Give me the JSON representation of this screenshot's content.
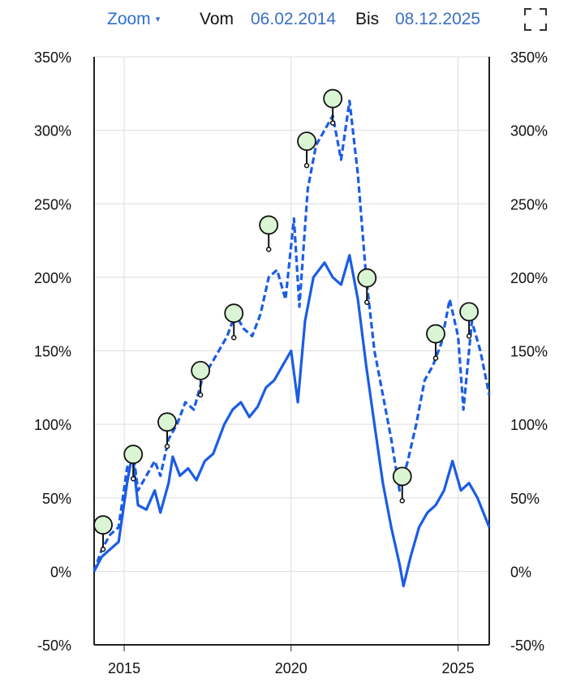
{
  "toolbar": {
    "zoom_label": "Zoom",
    "zoom_caret": "▾",
    "from_label": "Vom",
    "from_date": "06.02.2014",
    "to_label": "Bis",
    "to_date": "08.12.2025",
    "fullscreen_icon": "fullscreen-icon"
  },
  "colors": {
    "series": "#1a5ce6",
    "marker_fill": "#d9f5d3",
    "marker_stroke": "#111111",
    "grid": "#dddddd",
    "axis": "#222222",
    "accent_text": "#3a6fc4"
  },
  "chart_data": {
    "type": "line",
    "title": "",
    "xlabel": "",
    "ylabel": "",
    "x_ticks": [
      "2015",
      "2020",
      "2025"
    ],
    "y_ticks": [
      "350%",
      "300%",
      "250%",
      "200%",
      "150%",
      "100%",
      "50%",
      "0%",
      "-50%"
    ],
    "ylim": [
      -50,
      350
    ],
    "xlim": [
      "2014-02-06",
      "2025-12-08"
    ],
    "grid": true,
    "y_axis_sides": "both",
    "series": [
      {
        "style": "solid",
        "points": [
          [
            "2014-02-06",
            0
          ],
          [
            "2014-05-01",
            10
          ],
          [
            "2014-08-01",
            15
          ],
          [
            "2014-11-01",
            20
          ],
          [
            "2015-02-01",
            60
          ],
          [
            "2015-04-01",
            80
          ],
          [
            "2015-06-01",
            45
          ],
          [
            "2015-09-01",
            42
          ],
          [
            "2015-12-01",
            55
          ],
          [
            "2016-02-01",
            40
          ],
          [
            "2016-05-01",
            60
          ],
          [
            "2016-06-15",
            78
          ],
          [
            "2016-09-01",
            65
          ],
          [
            "2016-12-01",
            70
          ],
          [
            "2017-03-01",
            62
          ],
          [
            "2017-06-01",
            75
          ],
          [
            "2017-09-01",
            80
          ],
          [
            "2018-01-01",
            100
          ],
          [
            "2018-04-01",
            110
          ],
          [
            "2018-07-01",
            115
          ],
          [
            "2018-10-01",
            105
          ],
          [
            "2019-01-01",
            112
          ],
          [
            "2019-04-01",
            125
          ],
          [
            "2019-07-01",
            130
          ],
          [
            "2019-10-01",
            140
          ],
          [
            "2020-01-01",
            150
          ],
          [
            "2020-03-15",
            115
          ],
          [
            "2020-06-01",
            170
          ],
          [
            "2020-09-01",
            200
          ],
          [
            "2021-01-01",
            210
          ],
          [
            "2021-04-01",
            200
          ],
          [
            "2021-07-01",
            195
          ],
          [
            "2021-10-01",
            215
          ],
          [
            "2022-01-01",
            185
          ],
          [
            "2022-04-01",
            140
          ],
          [
            "2022-07-01",
            100
          ],
          [
            "2022-10-01",
            60
          ],
          [
            "2023-01-01",
            30
          ],
          [
            "2023-04-01",
            5
          ],
          [
            "2023-05-15",
            -10
          ],
          [
            "2023-08-01",
            10
          ],
          [
            "2023-11-01",
            30
          ],
          [
            "2024-02-01",
            40
          ],
          [
            "2024-05-01",
            45
          ],
          [
            "2024-08-01",
            55
          ],
          [
            "2024-11-01",
            75
          ],
          [
            "2025-02-01",
            55
          ],
          [
            "2025-05-01",
            60
          ],
          [
            "2025-08-01",
            50
          ],
          [
            "2025-12-08",
            30
          ]
        ]
      },
      {
        "style": "dashed",
        "points": [
          [
            "2014-02-06",
            0
          ],
          [
            "2014-05-01",
            15
          ],
          [
            "2014-08-01",
            25
          ],
          [
            "2014-11-01",
            30
          ],
          [
            "2015-02-01",
            70
          ],
          [
            "2015-04-01",
            85
          ],
          [
            "2015-06-01",
            55
          ],
          [
            "2015-09-01",
            65
          ],
          [
            "2015-12-01",
            75
          ],
          [
            "2016-02-01",
            65
          ],
          [
            "2016-05-01",
            90
          ],
          [
            "2016-08-01",
            100
          ],
          [
            "2016-11-01",
            115
          ],
          [
            "2017-02-01",
            110
          ],
          [
            "2017-05-01",
            130
          ],
          [
            "2017-08-01",
            140
          ],
          [
            "2017-11-01",
            150
          ],
          [
            "2018-02-01",
            160
          ],
          [
            "2018-05-01",
            175
          ],
          [
            "2018-08-01",
            165
          ],
          [
            "2018-11-01",
            160
          ],
          [
            "2019-02-01",
            175
          ],
          [
            "2019-05-01",
            200
          ],
          [
            "2019-08-01",
            205
          ],
          [
            "2019-11-01",
            185
          ],
          [
            "2020-02-01",
            240
          ],
          [
            "2020-04-01",
            180
          ],
          [
            "2020-07-01",
            260
          ],
          [
            "2020-10-01",
            290
          ],
          [
            "2021-01-01",
            300
          ],
          [
            "2021-04-01",
            310
          ],
          [
            "2021-07-01",
            280
          ],
          [
            "2021-10-01",
            320
          ],
          [
            "2022-01-01",
            270
          ],
          [
            "2022-04-01",
            200
          ],
          [
            "2022-07-01",
            150
          ],
          [
            "2022-10-01",
            120
          ],
          [
            "2023-01-01",
            90
          ],
          [
            "2023-04-01",
            55
          ],
          [
            "2023-07-01",
            75
          ],
          [
            "2023-10-01",
            100
          ],
          [
            "2024-01-01",
            130
          ],
          [
            "2024-04-01",
            140
          ],
          [
            "2024-07-01",
            155
          ],
          [
            "2024-10-01",
            185
          ],
          [
            "2025-01-01",
            160
          ],
          [
            "2025-03-01",
            110
          ],
          [
            "2025-06-01",
            170
          ],
          [
            "2025-09-01",
            150
          ],
          [
            "2025-12-08",
            120
          ]
        ]
      }
    ],
    "markers": [
      {
        "date": "2014-05-15",
        "value": 15
      },
      {
        "date": "2015-04-10",
        "value": 63
      },
      {
        "date": "2016-04-15",
        "value": 85
      },
      {
        "date": "2017-04-15",
        "value": 120
      },
      {
        "date": "2018-04-15",
        "value": 159
      },
      {
        "date": "2019-05-01",
        "value": 219
      },
      {
        "date": "2020-06-20",
        "value": 276
      },
      {
        "date": "2021-04-01",
        "value": 305
      },
      {
        "date": "2022-04-10",
        "value": 183
      },
      {
        "date": "2023-05-01",
        "value": 48
      },
      {
        "date": "2024-05-01",
        "value": 145
      },
      {
        "date": "2025-05-01",
        "value": 160
      }
    ]
  }
}
